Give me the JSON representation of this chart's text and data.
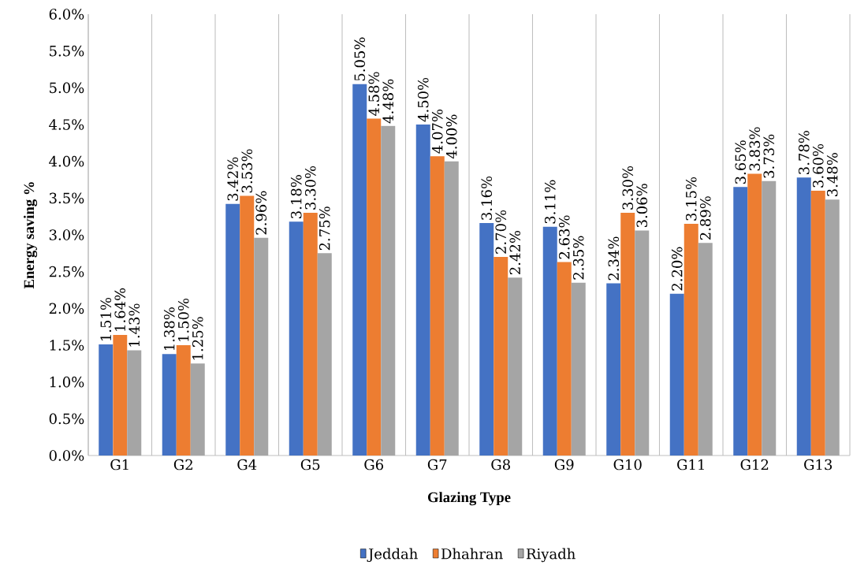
{
  "chart_data": {
    "type": "bar",
    "xlabel": "Glazing Type",
    "ylabel": "Energy saving  %",
    "categories": [
      "G1",
      "G2",
      "G4",
      "G5",
      "G6",
      "G7",
      "G8",
      "G9",
      "G10",
      "G11",
      "G12",
      "G13"
    ],
    "series": [
      {
        "name": "Jeddah",
        "color": "#4472c4",
        "values": [
          1.51,
          1.38,
          3.42,
          3.18,
          5.05,
          4.5,
          3.16,
          3.11,
          2.34,
          2.2,
          3.65,
          3.78
        ],
        "value_labels": [
          "1.51%",
          "1.38%",
          "3.42%",
          "3.18%",
          "5.05%",
          "4.50%",
          "3.16%",
          "3.11%",
          "2.34%",
          "2.20%",
          "3.65%",
          "3.78%"
        ]
      },
      {
        "name": "Dhahran",
        "color": "#ed7d31",
        "values": [
          1.64,
          1.5,
          3.53,
          3.3,
          4.58,
          4.07,
          2.7,
          2.63,
          3.3,
          3.15,
          3.83,
          3.6
        ],
        "value_labels": [
          "1.64%",
          "1.50%",
          "3.53%",
          "3.30%",
          "4.58%",
          "4.07%",
          "2.70%",
          "2.63%",
          "3.30%",
          "3.15%",
          "3.83%",
          "3.60%"
        ]
      },
      {
        "name": "Riyadh",
        "color": "#a5a5a5",
        "values": [
          1.43,
          1.25,
          2.96,
          2.75,
          4.48,
          4.0,
          2.42,
          2.35,
          3.06,
          2.89,
          3.73,
          3.48
        ],
        "value_labels": [
          "1.43%",
          "1.25%",
          "2.96%",
          "2.75%",
          "4.48%",
          "4.00%",
          "2.42%",
          "2.35%",
          "3.06%",
          "2.89%",
          "3.73%",
          "3.48%"
        ]
      }
    ],
    "ylim": [
      0,
      6
    ],
    "yticks": [
      {
        "value": 0,
        "label": "0.0%"
      },
      {
        "value": 0.5,
        "label": "0.5%"
      },
      {
        "value": 1,
        "label": "1.0%"
      },
      {
        "value": 1.5,
        "label": "1.5%"
      },
      {
        "value": 2,
        "label": "2.0%"
      },
      {
        "value": 2.5,
        "label": "2.5%"
      },
      {
        "value": 3,
        "label": "3.0%"
      },
      {
        "value": 3.5,
        "label": "3.5%"
      },
      {
        "value": 4,
        "label": "4.0%"
      },
      {
        "value": 4.5,
        "label": "4.5%"
      },
      {
        "value": 5,
        "label": "5.0%"
      },
      {
        "value": 5.5,
        "label": "5.5%"
      },
      {
        "value": 6,
        "label": "6.0%"
      }
    ],
    "grid": "x",
    "legend": "bottom"
  }
}
